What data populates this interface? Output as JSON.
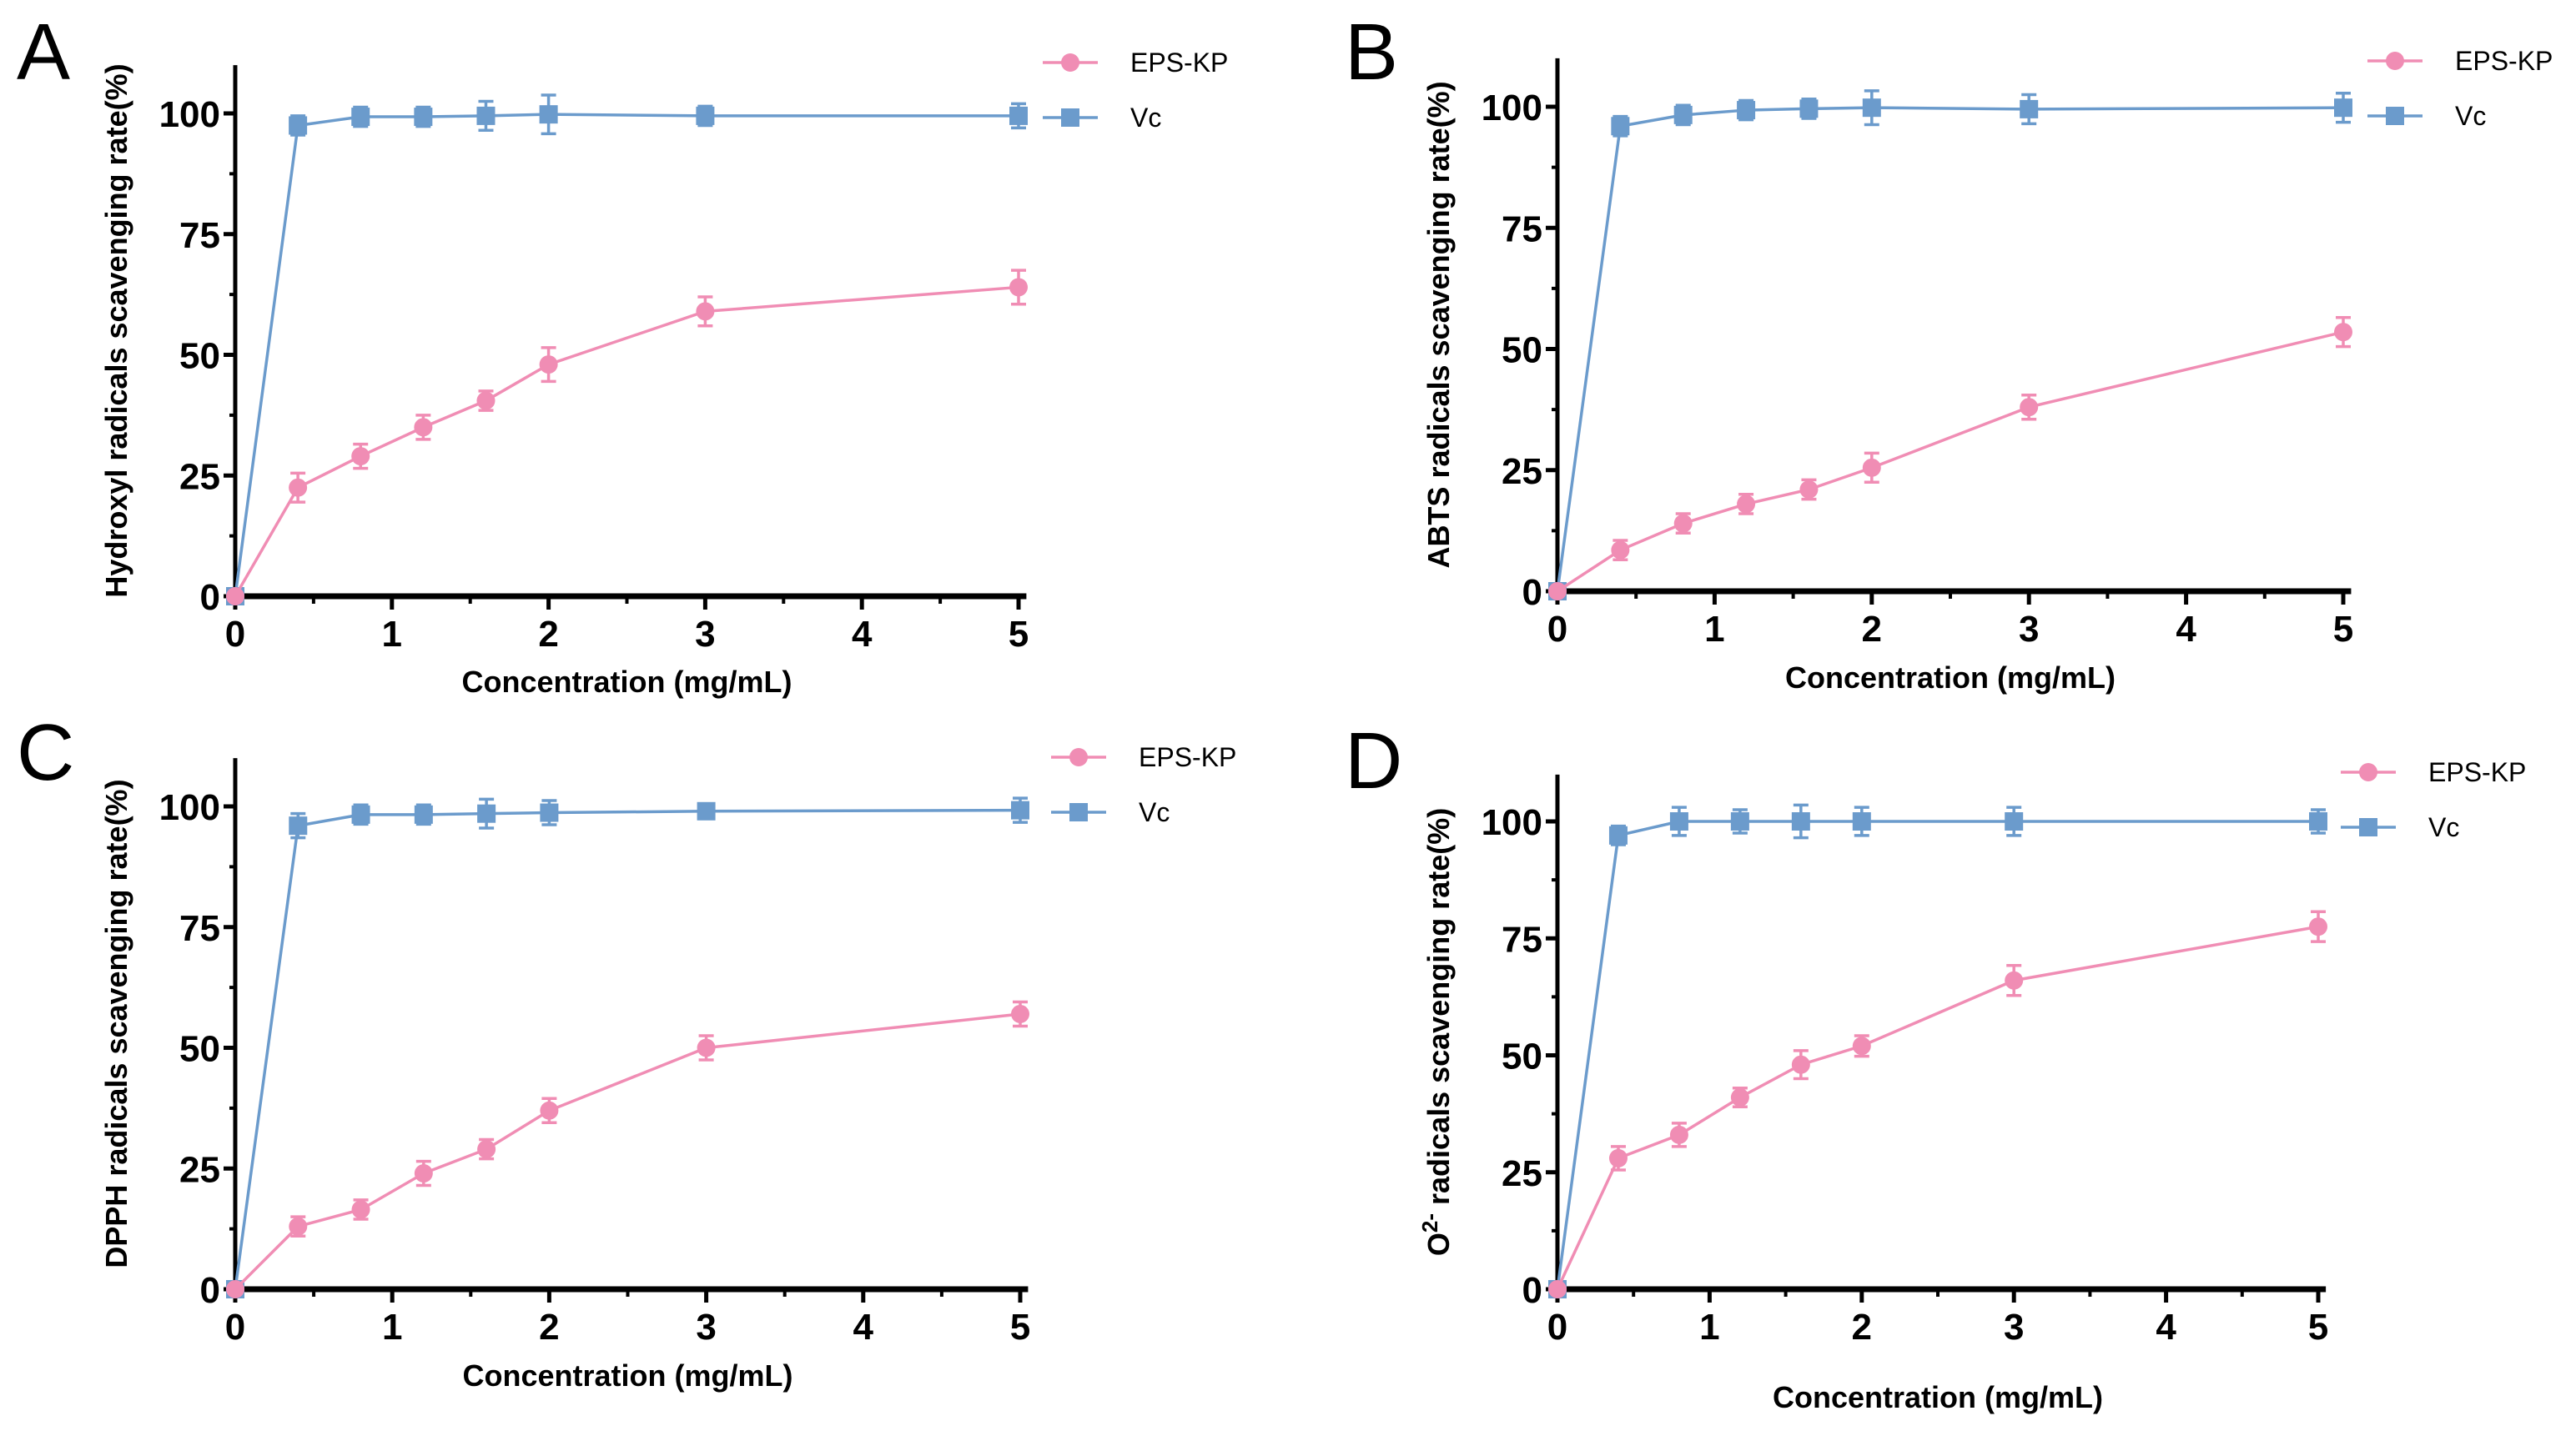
{
  "colors": {
    "eps": "#f08db4",
    "vc": "#6b9bcc",
    "axis": "#000000"
  },
  "chart_data": [
    {
      "type": "line",
      "panel": "A",
      "xlabel": "Concentration (mg/mL)",
      "ylabel": "Hydroxyl radicals scavenging  rate(%)",
      "x": [
        0,
        0.4,
        0.8,
        1.2,
        1.6,
        2,
        3,
        5
      ],
      "xticks": [
        "0",
        "1",
        "2",
        "3",
        "4",
        "5"
      ],
      "yticks": [
        "0",
        "25",
        "50",
        "75",
        "100"
      ],
      "xlim": [
        0,
        5
      ],
      "ylim": [
        0,
        110
      ],
      "legend": "top-right",
      "series": [
        {
          "name": "EPS-KP",
          "values": [
            0,
            22.5,
            29,
            35,
            40.5,
            48,
            59,
            64
          ],
          "err": [
            0,
            3,
            2.5,
            2.5,
            2,
            3.5,
            3,
            3.5
          ]
        },
        {
          "name": "Vc",
          "values": [
            0,
            97.5,
            99.3,
            99.3,
            99.5,
            99.8,
            99.5,
            99.5
          ],
          "err": [
            0,
            2,
            2,
            2,
            3,
            4,
            2,
            2.5
          ]
        }
      ]
    },
    {
      "type": "line",
      "panel": "B",
      "xlabel": "Concentration (mg/mL)",
      "ylabel": "ABTS radicals scavenging  rate(%)",
      "x": [
        0,
        0.4,
        0.8,
        1.2,
        1.6,
        2,
        3,
        5
      ],
      "xticks": [
        "0",
        "1",
        "2",
        "3",
        "4",
        "5"
      ],
      "yticks": [
        "0",
        "25",
        "50",
        "75",
        "100"
      ],
      "xlim": [
        0,
        5
      ],
      "ylim": [
        0,
        110
      ],
      "legend": "top-right",
      "series": [
        {
          "name": "EPS-KP",
          "values": [
            0,
            8.5,
            14,
            18,
            21,
            25.5,
            38,
            53.5
          ],
          "err": [
            0,
            2,
            2,
            2,
            2,
            3,
            2.5,
            3
          ]
        },
        {
          "name": "Vc",
          "values": [
            0,
            96,
            98.3,
            99.3,
            99.6,
            99.8,
            99.5,
            99.8
          ],
          "err": [
            0,
            2,
            2,
            2,
            2,
            3.5,
            3,
            3
          ]
        }
      ]
    },
    {
      "type": "line",
      "panel": "C",
      "xlabel": "Concentration (mg/mL)",
      "ylabel": "DPPH radicals scavenging  rate(%)",
      "x": [
        0,
        0.4,
        0.8,
        1.2,
        1.6,
        2,
        3,
        5
      ],
      "xticks": [
        "0",
        "1",
        "2",
        "3",
        "4",
        "5"
      ],
      "yticks": [
        "0",
        "25",
        "50",
        "75",
        "100"
      ],
      "xlim": [
        0,
        5
      ],
      "ylim": [
        0,
        110
      ],
      "legend": "top-right",
      "series": [
        {
          "name": "EPS-KP",
          "values": [
            0,
            13,
            16.5,
            24,
            29,
            37,
            50,
            57
          ],
          "err": [
            0,
            2,
            2,
            2.5,
            2,
            2.5,
            2.5,
            2.5
          ]
        },
        {
          "name": "Vc",
          "values": [
            0,
            96,
            98.3,
            98.3,
            98.5,
            98.7,
            99,
            99.2
          ],
          "err": [
            0,
            2.5,
            2,
            2,
            3,
            2.5,
            1.5,
            2.5
          ]
        }
      ]
    },
    {
      "type": "line",
      "panel": "D",
      "xlabel": "Concentration (mg/mL)",
      "ylabel": "O2- radicals scavenging  rate(%)",
      "x": [
        0,
        0.4,
        0.8,
        1.2,
        1.6,
        2,
        3,
        5
      ],
      "xticks": [
        "0",
        "1",
        "2",
        "3",
        "4",
        "5"
      ],
      "yticks": [
        "0",
        "25",
        "50",
        "75",
        "100"
      ],
      "xlim": [
        0,
        5
      ],
      "ylim": [
        0,
        110
      ],
      "legend": "top-right",
      "series": [
        {
          "name": "EPS-KP",
          "values": [
            0,
            28,
            33,
            41,
            48,
            52,
            66,
            77.5
          ],
          "err": [
            0,
            2.5,
            2.5,
            2,
            3,
            2.2,
            3.2,
            3.2
          ]
        },
        {
          "name": "Vc",
          "values": [
            0,
            97,
            100,
            100,
            100,
            100,
            100,
            100
          ],
          "err": [
            0,
            2,
            3,
            2.5,
            3.5,
            3,
            3,
            2.5
          ]
        }
      ]
    }
  ]
}
